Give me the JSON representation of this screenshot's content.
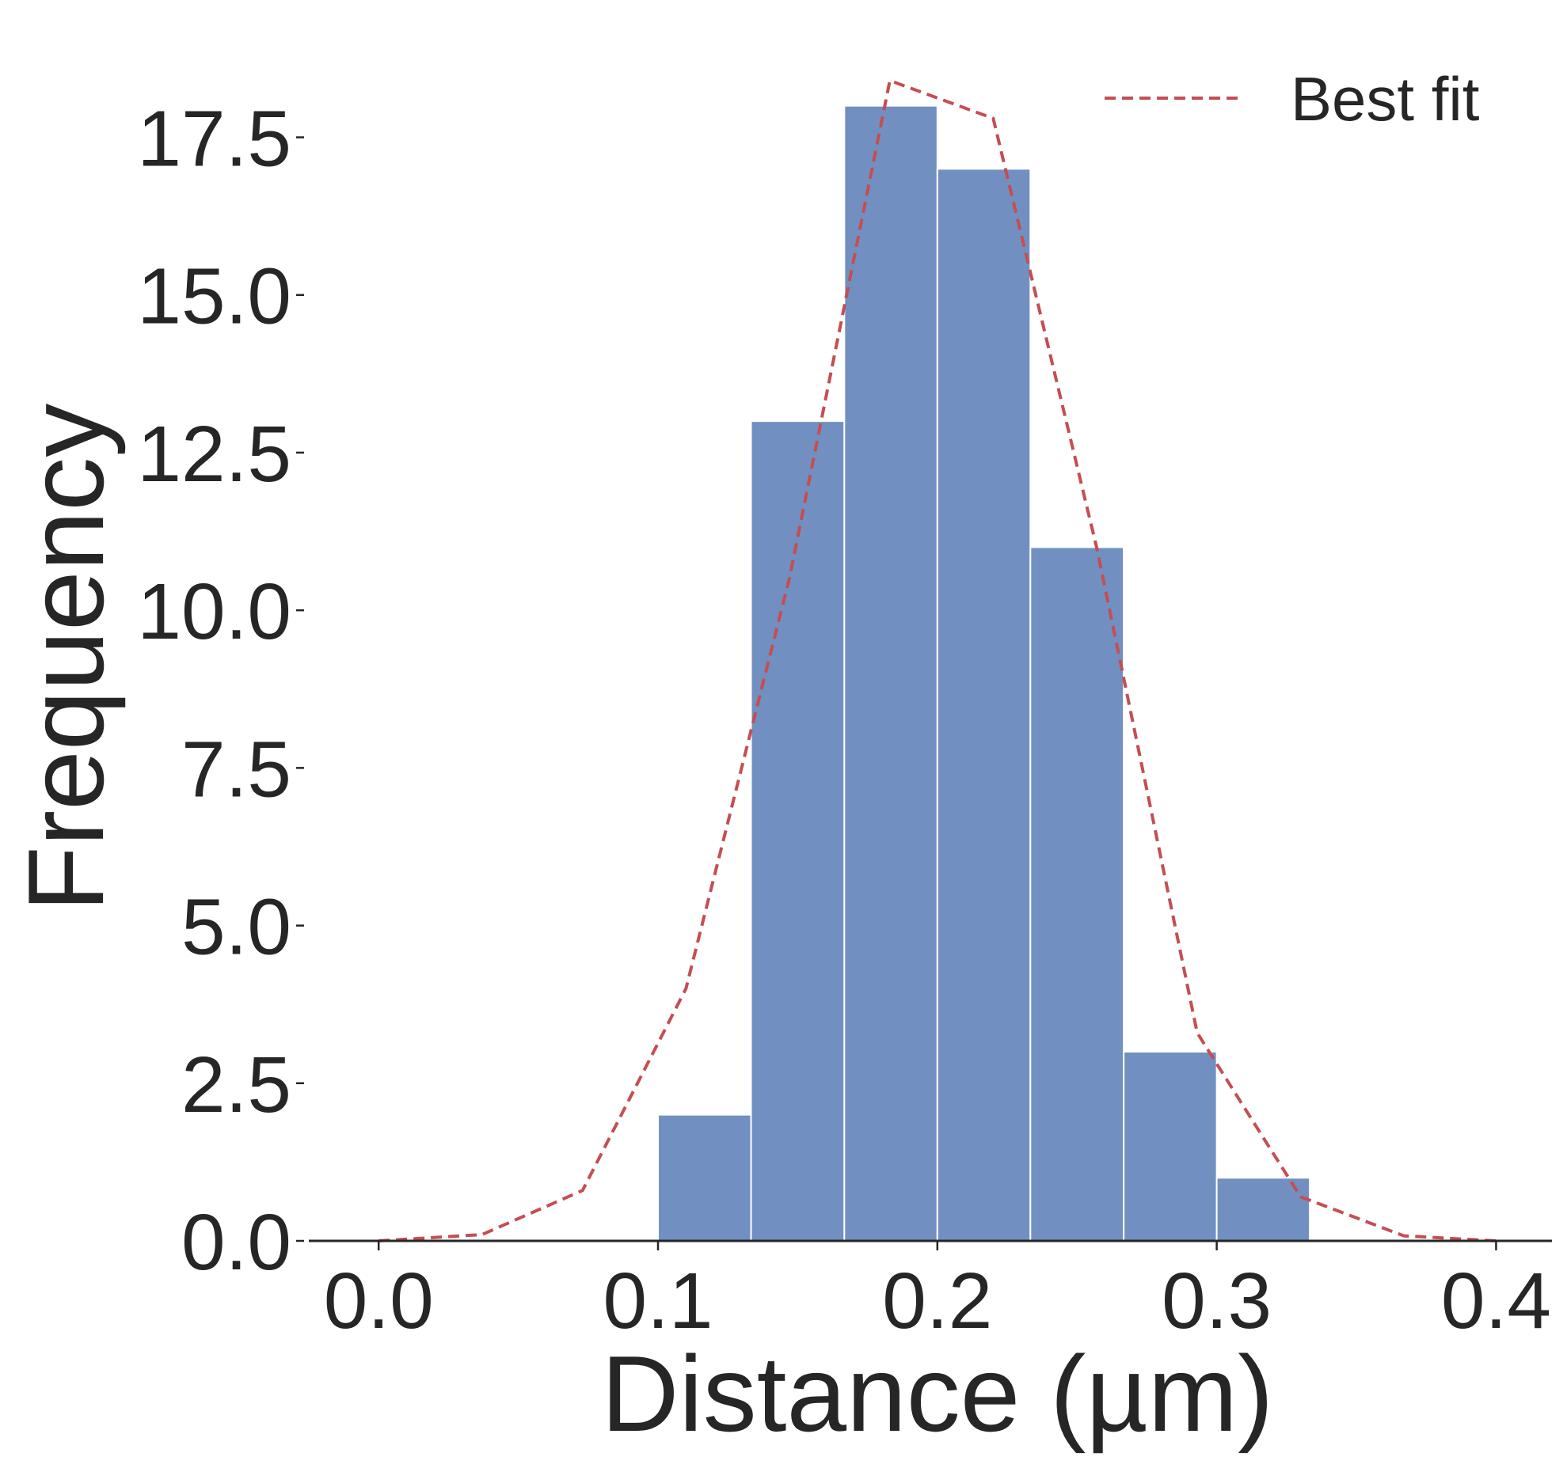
{
  "chart_data": {
    "type": "bar",
    "subtype": "histogram",
    "title": "",
    "xlabel": "Distance (µm)",
    "ylabel": "Frequency",
    "xlim": [
      -0.025,
      0.42
    ],
    "ylim": [
      0,
      19
    ],
    "x_ticks": [
      0.0,
      0.1,
      0.2,
      0.3,
      0.4
    ],
    "x_tick_labels": [
      "0.0",
      "0.1",
      "0.2",
      "0.3",
      "0.4"
    ],
    "y_ticks": [
      0.0,
      2.5,
      5.0,
      7.5,
      10.0,
      12.5,
      15.0,
      17.5
    ],
    "y_tick_labels": [
      "0.0",
      "2.5",
      "5.0",
      "7.5",
      "10.0",
      "12.5",
      "15.0",
      "17.5"
    ],
    "bins": [
      {
        "start": 0.1,
        "end": 0.1333,
        "count": 2
      },
      {
        "start": 0.1333,
        "end": 0.1667,
        "count": 13
      },
      {
        "start": 0.1667,
        "end": 0.2,
        "count": 18
      },
      {
        "start": 0.2,
        "end": 0.2333,
        "count": 17
      },
      {
        "start": 0.2333,
        "end": 0.2667,
        "count": 11
      },
      {
        "start": 0.2667,
        "end": 0.3,
        "count": 3
      },
      {
        "start": 0.3,
        "end": 0.3333,
        "count": 1
      }
    ],
    "series": [
      {
        "name": "Best fit",
        "type": "line",
        "style": "dashed",
        "x": [
          0.0,
          0.037,
          0.073,
          0.11,
          0.147,
          0.183,
          0.22,
          0.257,
          0.293,
          0.33,
          0.367,
          0.4
        ],
        "y": [
          0.0,
          0.1,
          0.8,
          4.0,
          10.5,
          18.4,
          17.8,
          11.0,
          3.3,
          0.7,
          0.08,
          0.0
        ]
      }
    ],
    "legend": {
      "position": "top-right",
      "entries": [
        "Best fit"
      ]
    },
    "grid": false,
    "colors": {
      "bars": "#7190c1",
      "bar_edge": "#ffffff",
      "fit_line": "#c44e52",
      "axis": "#262626"
    }
  }
}
